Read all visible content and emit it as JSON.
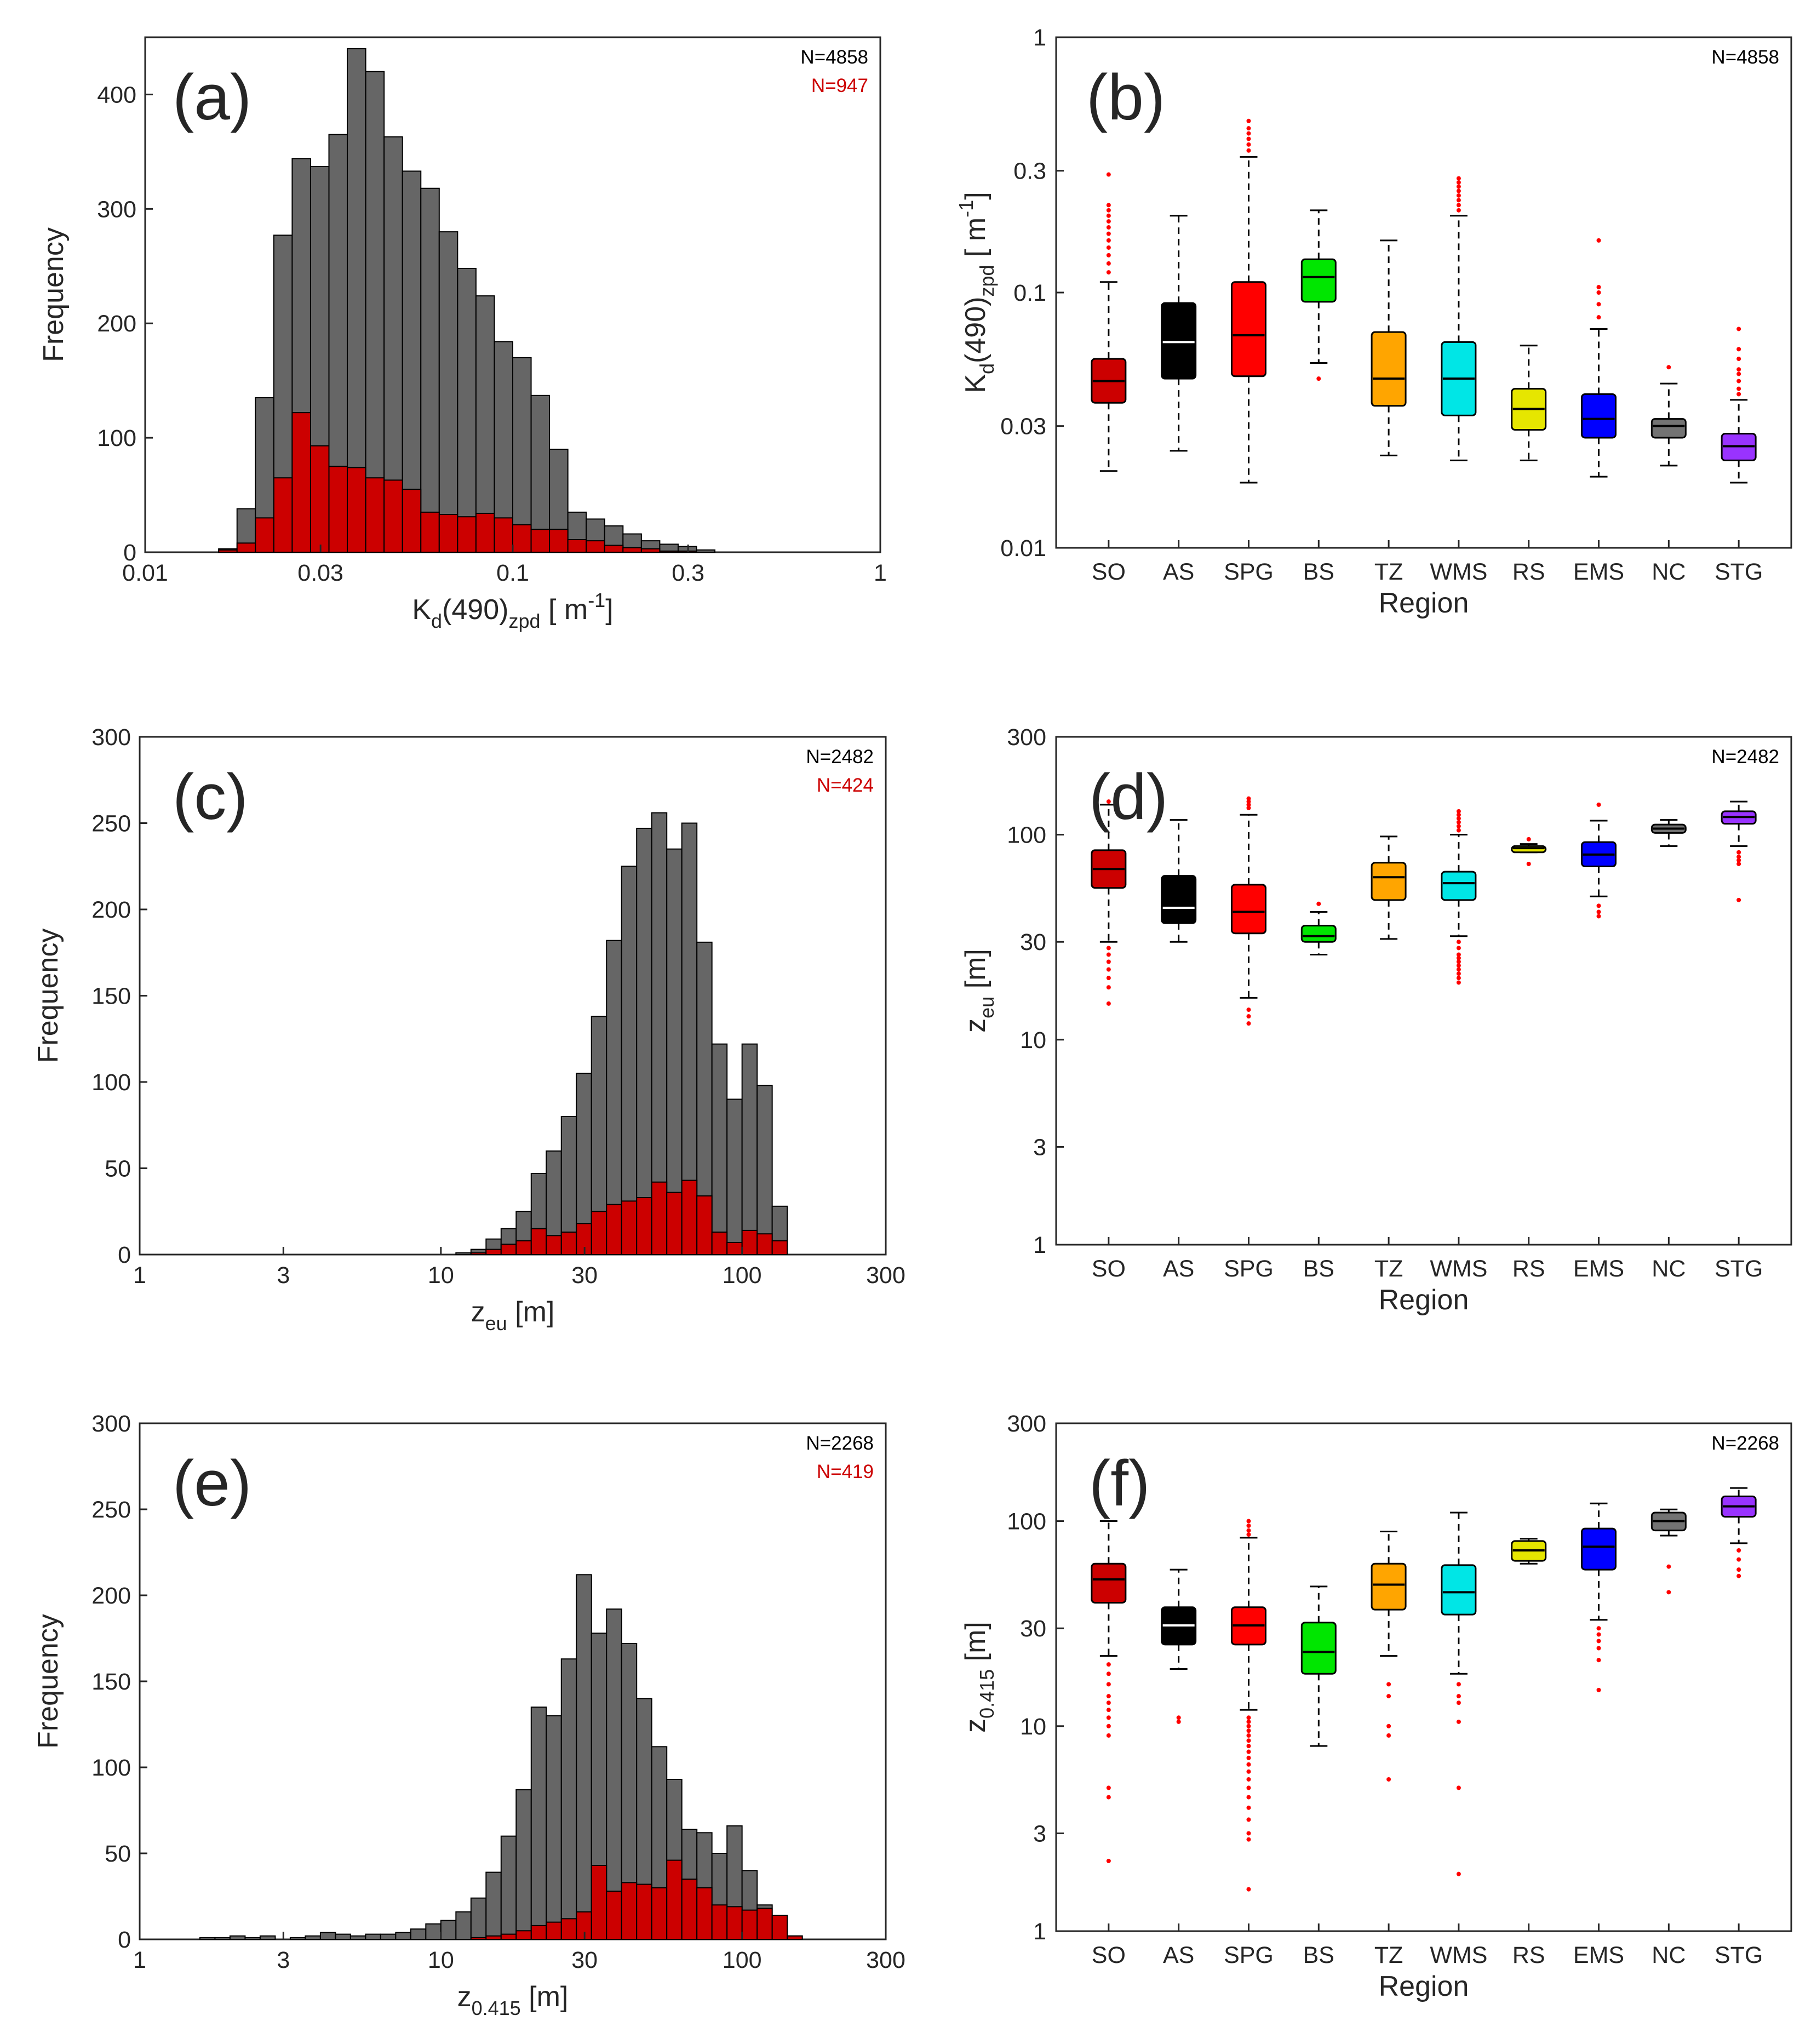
{
  "colors": {
    "grey_bar": "#666666",
    "red_bar": "#cc0000",
    "outlier": "#ff0000",
    "regions": {
      "SO": "#cc0000",
      "AS": "#000000",
      "SPG": "#ff0000",
      "BS": "#00e600",
      "TZ": "#ffa500",
      "WMS": "#00e6e6",
      "RS": "#e6e600",
      "EMS": "#0000ff",
      "NC": "#737373",
      "STG": "#9933ff"
    }
  },
  "chart_data": [
    {
      "id": "a",
      "type": "bar",
      "panel_label": "(a)",
      "xscale": "log",
      "xlim": [
        0.01,
        1
      ],
      "ylim": [
        0,
        450
      ],
      "xticks": [
        0.01,
        0.03,
        0.1,
        0.3,
        1
      ],
      "xtick_labels": [
        "0.01",
        "0.03",
        "0.1",
        "0.3",
        "1"
      ],
      "yticks": [
        0,
        100,
        200,
        300,
        400
      ],
      "ytick_labels": [
        "0",
        "100",
        "200",
        "300",
        "400"
      ],
      "ylabel": "Frequency",
      "xlabel": {
        "base": "K",
        "sub1": "d",
        "mid": "(490)",
        "sub2": "zpd",
        "unit": " [ m",
        "sup": "-1",
        "close": "]"
      },
      "n_total": "N=4858",
      "n_red": "N=947",
      "bin_edges_log10": [
        -1.8,
        -1.75,
        -1.7,
        -1.65,
        -1.6,
        -1.55,
        -1.5,
        -1.45,
        -1.4,
        -1.35,
        -1.3,
        -1.25,
        -1.2,
        -1.15,
        -1.1,
        -1.05,
        -1.0,
        -0.95,
        -0.9,
        -0.85,
        -0.8,
        -0.75,
        -0.7,
        -0.65,
        -0.6,
        -0.55,
        -0.5,
        -0.45,
        -0.4,
        -0.35,
        -0.3
      ],
      "series": [
        {
          "name": "all",
          "values": [
            3,
            38,
            135,
            277,
            344,
            337,
            365,
            440,
            420,
            363,
            333,
            318,
            280,
            248,
            224,
            184,
            170,
            137,
            90,
            35,
            29,
            23,
            16,
            10,
            7,
            5,
            2,
            0,
            0,
            0
          ]
        },
        {
          "name": "subset",
          "values": [
            2,
            8,
            30,
            65,
            122,
            93,
            75,
            74,
            65,
            63,
            55,
            35,
            33,
            31,
            34,
            30,
            24,
            20,
            20,
            11,
            10,
            6,
            4,
            3,
            1,
            1,
            0,
            0,
            0,
            0
          ]
        }
      ]
    },
    {
      "id": "b",
      "type": "box",
      "panel_label": "(b)",
      "yscale": "log",
      "ylim": [
        0.01,
        1
      ],
      "yticks": [
        0.01,
        0.03,
        0.1,
        0.3,
        1
      ],
      "ytick_labels": [
        "0.01",
        "0.03",
        "0.1",
        "0.3",
        "1"
      ],
      "xlabel": "Region",
      "ylabel": {
        "base": "K",
        "sub1": "d",
        "mid": "(490)",
        "sub2": "zpd",
        "unit": " [ m",
        "sup": "-1",
        "close": "]"
      },
      "n_total": "N=4858",
      "categories": [
        "SO",
        "AS",
        "SPG",
        "BS",
        "TZ",
        "WMS",
        "RS",
        "EMS",
        "NC",
        "STG"
      ],
      "boxes": [
        {
          "q1": 0.037,
          "median": 0.045,
          "q3": 0.055,
          "whisker_low": 0.02,
          "whisker_high": 0.11,
          "median_color": "#000000",
          "outliers": [
            0.12,
            0.13,
            0.14,
            0.15,
            0.16,
            0.17,
            0.18,
            0.19,
            0.2,
            0.21,
            0.22,
            0.29
          ]
        },
        {
          "q1": 0.046,
          "median": 0.064,
          "q3": 0.091,
          "whisker_low": 0.024,
          "whisker_high": 0.2,
          "median_color": "#ffffff",
          "outliers": []
        },
        {
          "q1": 0.047,
          "median": 0.068,
          "q3": 0.11,
          "whisker_low": 0.018,
          "whisker_high": 0.34,
          "median_color": "#000000",
          "outliers": [
            0.36,
            0.38,
            0.4,
            0.42,
            0.44,
            0.47
          ]
        },
        {
          "q1": 0.092,
          "median": 0.115,
          "q3": 0.135,
          "whisker_low": 0.053,
          "whisker_high": 0.21,
          "median_color": "#000000",
          "outliers": [
            0.046
          ]
        },
        {
          "q1": 0.036,
          "median": 0.046,
          "q3": 0.07,
          "whisker_low": 0.023,
          "whisker_high": 0.16,
          "median_color": "#000000",
          "outliers": []
        },
        {
          "q1": 0.033,
          "median": 0.046,
          "q3": 0.064,
          "whisker_low": 0.022,
          "whisker_high": 0.2,
          "median_color": "#000000",
          "outliers": [
            0.21,
            0.22,
            0.23,
            0.24,
            0.25,
            0.26,
            0.27,
            0.28
          ]
        },
        {
          "q1": 0.029,
          "median": 0.035,
          "q3": 0.042,
          "whisker_low": 0.022,
          "whisker_high": 0.062,
          "median_color": "#000000",
          "outliers": []
        },
        {
          "q1": 0.027,
          "median": 0.032,
          "q3": 0.04,
          "whisker_low": 0.019,
          "whisker_high": 0.072,
          "median_color": "#000000",
          "outliers": [
            0.08,
            0.09,
            0.1,
            0.105,
            0.16
          ]
        },
        {
          "q1": 0.027,
          "median": 0.03,
          "q3": 0.032,
          "whisker_low": 0.021,
          "whisker_high": 0.044,
          "median_color": "#000000",
          "outliers": [
            0.051
          ]
        },
        {
          "q1": 0.022,
          "median": 0.025,
          "q3": 0.028,
          "whisker_low": 0.018,
          "whisker_high": 0.038,
          "median_color": "#000000",
          "outliers": [
            0.04,
            0.042,
            0.045,
            0.048,
            0.05,
            0.055,
            0.06,
            0.072
          ]
        }
      ]
    },
    {
      "id": "c",
      "type": "bar",
      "panel_label": "(c)",
      "xscale": "log",
      "xlim": [
        1,
        300
      ],
      "ylim": [
        0,
        300
      ],
      "xticks": [
        1,
        3,
        10,
        30,
        100,
        300
      ],
      "xtick_labels": [
        "1",
        "3",
        "10",
        "30",
        "100",
        "300"
      ],
      "yticks": [
        0,
        50,
        100,
        150,
        200,
        250,
        300
      ],
      "ytick_labels": [
        "0",
        "50",
        "100",
        "150",
        "200",
        "250",
        "300"
      ],
      "ylabel": "Frequency",
      "xlabel": {
        "base": "z",
        "sub1": "eu",
        "unit": " [m]"
      },
      "n_total": "N=2482",
      "n_red": "N=424",
      "bin_edges_log10": [
        1.05,
        1.1,
        1.15,
        1.2,
        1.25,
        1.3,
        1.35,
        1.4,
        1.45,
        1.5,
        1.55,
        1.6,
        1.65,
        1.7,
        1.75,
        1.8,
        1.85,
        1.9,
        1.95,
        2.0,
        2.05,
        2.1,
        2.15
      ],
      "series": [
        {
          "name": "all",
          "values": [
            1,
            3,
            9,
            15,
            25,
            47,
            60,
            80,
            105,
            138,
            182,
            225,
            247,
            256,
            235,
            250,
            181,
            122,
            90,
            122,
            98,
            28
          ]
        },
        {
          "name": "subset",
          "values": [
            0,
            1,
            3,
            6,
            8,
            15,
            11,
            13,
            18,
            25,
            29,
            31,
            33,
            42,
            36,
            43,
            34,
            13,
            7,
            14,
            12,
            8
          ]
        }
      ]
    },
    {
      "id": "d",
      "type": "box",
      "panel_label": "(d)",
      "yscale": "log",
      "ylim": [
        1,
        300
      ],
      "yticks": [
        1,
        3,
        10,
        30,
        100,
        300
      ],
      "ytick_labels": [
        "1",
        "3",
        "10",
        "30",
        "100",
        "300"
      ],
      "xlabel": "Region",
      "ylabel": {
        "base": "z",
        "sub1": "eu",
        "unit": " [m]"
      },
      "n_total": "N=2482",
      "categories": [
        "SO",
        "AS",
        "SPG",
        "BS",
        "TZ",
        "WMS",
        "RS",
        "EMS",
        "NC",
        "STG"
      ],
      "boxes": [
        {
          "q1": 55,
          "median": 68,
          "q3": 84,
          "whisker_low": 30,
          "whisker_high": 140,
          "median_color": "#000000",
          "outliers": [
            28,
            26,
            24,
            22,
            20,
            18,
            15,
            145
          ]
        },
        {
          "q1": 37,
          "median": 44,
          "q3": 63,
          "whisker_low": 30,
          "whisker_high": 118,
          "median_color": "#ffffff",
          "outliers": []
        },
        {
          "q1": 33,
          "median": 42,
          "q3": 57,
          "whisker_low": 16,
          "whisker_high": 125,
          "median_color": "#000000",
          "outliers": [
            14,
            13,
            12,
            135,
            140,
            145,
            150
          ]
        },
        {
          "q1": 30,
          "median": 32,
          "q3": 36,
          "whisker_low": 26,
          "whisker_high": 42,
          "median_color": "#000000",
          "outliers": [
            46
          ]
        },
        {
          "q1": 48,
          "median": 62,
          "q3": 73,
          "whisker_low": 31,
          "whisker_high": 98,
          "median_color": "#000000",
          "outliers": []
        },
        {
          "q1": 48,
          "median": 58,
          "q3": 66,
          "whisker_low": 32,
          "whisker_high": 100,
          "median_color": "#000000",
          "outliers": [
            30,
            28,
            26,
            25,
            24,
            23,
            22,
            21,
            20,
            19,
            105,
            110,
            115,
            120,
            125,
            130
          ]
        },
        {
          "q1": 82,
          "median": 86,
          "q3": 88,
          "whisker_low": 82,
          "whisker_high": 90,
          "median_color": "#000000",
          "outliers": [
            72,
            95
          ]
        },
        {
          "q1": 70,
          "median": 80,
          "q3": 92,
          "whisker_low": 50,
          "whisker_high": 117,
          "median_color": "#000000",
          "outliers": [
            45,
            42,
            40,
            140
          ]
        },
        {
          "q1": 102,
          "median": 107,
          "q3": 112,
          "whisker_low": 88,
          "whisker_high": 118,
          "median_color": "#000000",
          "outliers": []
        },
        {
          "q1": 113,
          "median": 122,
          "q3": 130,
          "whisker_low": 88,
          "whisker_high": 145,
          "median_color": "#000000",
          "outliers": [
            82,
            78,
            75,
            72,
            48
          ]
        }
      ]
    },
    {
      "id": "e",
      "type": "bar",
      "panel_label": "(e)",
      "xscale": "log",
      "xlim": [
        1,
        300
      ],
      "ylim": [
        0,
        300
      ],
      "xticks": [
        1,
        3,
        10,
        30,
        100,
        300
      ],
      "xtick_labels": [
        "1",
        "3",
        "10",
        "30",
        "100",
        "300"
      ],
      "yticks": [
        0,
        50,
        100,
        150,
        200,
        250,
        300
      ],
      "ytick_labels": [
        "0",
        "50",
        "100",
        "150",
        "200",
        "250",
        "300"
      ],
      "ylabel": "Frequency",
      "xlabel": {
        "base": "z",
        "sub1": "0.415",
        "unit": " [m]"
      },
      "n_total": "N=2268",
      "n_red": "N=419",
      "bin_edges_log10": [
        0.2,
        0.25,
        0.3,
        0.35,
        0.4,
        0.45,
        0.5,
        0.55,
        0.6,
        0.65,
        0.7,
        0.75,
        0.8,
        0.85,
        0.9,
        0.95,
        1.0,
        1.05,
        1.1,
        1.15,
        1.2,
        1.25,
        1.3,
        1.35,
        1.4,
        1.45,
        1.5,
        1.55,
        1.6,
        1.65,
        1.7,
        1.75,
        1.8,
        1.85,
        1.9,
        1.95,
        2.0,
        2.05,
        2.1,
        2.15,
        2.2
      ],
      "series": [
        {
          "name": "all",
          "values": [
            1,
            1,
            2,
            1,
            2,
            0,
            1,
            2,
            4,
            3,
            2,
            3,
            3,
            4,
            6,
            9,
            11,
            16,
            24,
            39,
            60,
            87,
            135,
            130,
            163,
            212,
            178,
            192,
            172,
            140,
            112,
            93,
            64,
            62,
            50,
            66,
            40,
            20,
            10,
            2
          ]
        },
        {
          "name": "subset",
          "values": [
            0,
            0,
            0,
            0,
            0,
            0,
            0,
            0,
            0,
            0,
            0,
            0,
            0,
            0,
            0,
            0,
            0,
            0,
            1,
            2,
            3,
            5,
            8,
            10,
            12,
            16,
            43,
            28,
            33,
            32,
            30,
            46,
            35,
            30,
            20,
            19,
            17,
            18,
            14,
            2
          ]
        }
      ]
    },
    {
      "id": "f",
      "type": "box",
      "panel_label": "(f)",
      "yscale": "log",
      "ylim": [
        1,
        300
      ],
      "yticks": [
        1,
        3,
        10,
        30,
        100,
        300
      ],
      "ytick_labels": [
        "1",
        "3",
        "10",
        "30",
        "100",
        "300"
      ],
      "xlabel": "Region",
      "ylabel": {
        "base": "z",
        "sub1": "0.415",
        "unit": " [m]"
      },
      "n_total": "N=2268",
      "categories": [
        "SO",
        "AS",
        "SPG",
        "BS",
        "TZ",
        "WMS",
        "RS",
        "EMS",
        "NC",
        "STG"
      ],
      "boxes": [
        {
          "q1": 40,
          "median": 52,
          "q3": 62,
          "whisker_low": 22,
          "whisker_high": 100,
          "median_color": "#000000",
          "outliers": [
            20,
            18,
            16,
            14,
            13,
            12,
            11,
            10,
            9,
            5,
            4.5,
            2.2
          ]
        },
        {
          "q1": 25,
          "median": 31,
          "q3": 38,
          "whisker_low": 19,
          "whisker_high": 58,
          "median_color": "#ffffff",
          "outliers": [
            11,
            10.5
          ]
        },
        {
          "q1": 25,
          "median": 31,
          "q3": 38,
          "whisker_low": 12,
          "whisker_high": 83,
          "median_color": "#000000",
          "outliers": [
            11,
            10.5,
            10,
            9.5,
            9,
            8.5,
            8,
            7.5,
            7,
            6.5,
            6,
            5.5,
            5,
            4.5,
            4,
            3.5,
            3,
            2.8,
            1.6,
            86,
            90,
            95,
            100
          ]
        },
        {
          "q1": 18,
          "median": 23,
          "q3": 32,
          "whisker_low": 8,
          "whisker_high": 48,
          "median_color": "#000000",
          "outliers": []
        },
        {
          "q1": 37,
          "median": 49,
          "q3": 62,
          "whisker_low": 22,
          "whisker_high": 89,
          "median_color": "#000000",
          "outliers": [
            16,
            14,
            10,
            9,
            5.5
          ]
        },
        {
          "q1": 35,
          "median": 45,
          "q3": 61,
          "whisker_low": 18,
          "whisker_high": 110,
          "median_color": "#000000",
          "outliers": [
            16,
            14,
            13,
            10.5,
            5,
            1.9
          ]
        },
        {
          "q1": 64,
          "median": 72,
          "q3": 80,
          "whisker_low": 62,
          "whisker_high": 82,
          "median_color": "#000000",
          "outliers": []
        },
        {
          "q1": 58,
          "median": 75,
          "q3": 92,
          "whisker_low": 33,
          "whisker_high": 122,
          "median_color": "#000000",
          "outliers": [
            30,
            28,
            26,
            24,
            21,
            15
          ]
        },
        {
          "q1": 90,
          "median": 100,
          "q3": 110,
          "whisker_low": 85,
          "whisker_high": 114,
          "median_color": "#000000",
          "outliers": [
            60,
            45
          ]
        },
        {
          "q1": 105,
          "median": 118,
          "q3": 132,
          "whisker_low": 78,
          "whisker_high": 145,
          "median_color": "#000000",
          "outliers": [
            72,
            65,
            58,
            54
          ]
        }
      ]
    }
  ]
}
